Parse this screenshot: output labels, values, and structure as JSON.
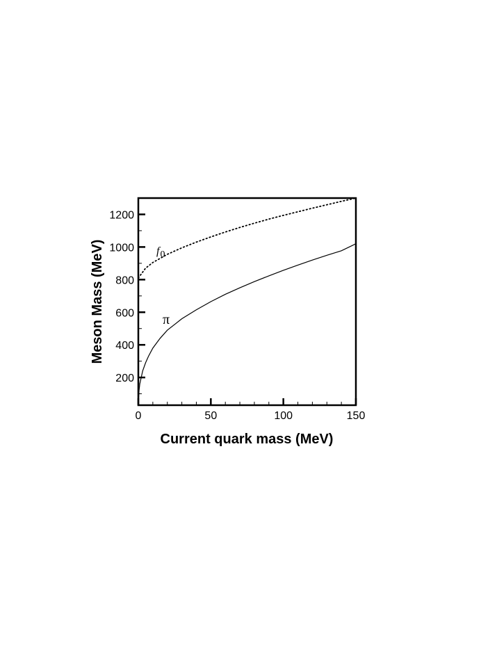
{
  "chart_data": {
    "type": "line",
    "title": "",
    "xlabel": "Current quark mass (MeV)",
    "ylabel": "Meson Mass (MeV)",
    "xlim": [
      0,
      150
    ],
    "ylim": [
      30,
      1300
    ],
    "x_ticks": [
      0,
      50,
      100,
      150
    ],
    "x_tick_labels": [
      "0",
      "50",
      "100",
      "150"
    ],
    "y_ticks": [
      200,
      400,
      600,
      800,
      1000,
      1200
    ],
    "y_tick_labels": [
      "200",
      "400",
      "600",
      "800",
      "1000",
      "1200"
    ],
    "grid": false,
    "legend": "none",
    "series": [
      {
        "name": "f0",
        "label_main": "f",
        "label_sub": "0",
        "style": "dotted",
        "x": [
          0,
          5,
          10,
          20,
          30,
          40,
          50,
          60,
          70,
          80,
          90,
          100,
          110,
          120,
          130,
          140,
          150
        ],
        "y": [
          810,
          870,
          905,
          955,
          995,
          1030,
          1062,
          1092,
          1120,
          1146,
          1171,
          1194,
          1216,
          1238,
          1259,
          1280,
          1300
        ]
      },
      {
        "name": "π",
        "label_main": "π",
        "style": "solid",
        "x": [
          0,
          0.5,
          1,
          2,
          3,
          5,
          7,
          10,
          15,
          20,
          30,
          40,
          50,
          60,
          70,
          80,
          90,
          100,
          110,
          120,
          130,
          140,
          150
        ],
        "y": [
          30,
          120,
          160,
          200,
          240,
          290,
          330,
          380,
          440,
          490,
          560,
          615,
          665,
          710,
          750,
          788,
          823,
          857,
          889,
          920,
          949,
          977,
          1020
        ]
      }
    ]
  }
}
